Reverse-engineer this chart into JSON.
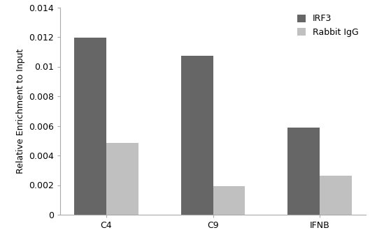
{
  "categories": [
    "C4",
    "C9",
    "IFNB"
  ],
  "irf3_values": [
    0.01195,
    0.01075,
    0.0059
  ],
  "rabbit_igg_values": [
    0.00485,
    0.00195,
    0.00265
  ],
  "irf3_color": "#666666",
  "rabbit_igg_color": "#c0c0c0",
  "irf3_label": "IRF3",
  "rabbit_igg_label": "Rabbit IgG",
  "ylabel": "Relative Enrichment to Input",
  "ylim": [
    0,
    0.014
  ],
  "yticks": [
    0,
    0.002,
    0.004,
    0.006,
    0.008,
    0.01,
    0.012,
    0.014
  ],
  "ytick_labels": [
    "0",
    "0.002",
    "0.004",
    "0.006",
    "0.008",
    "0.01",
    "0.012",
    "0.014"
  ],
  "bar_width": 0.3,
  "legend_fontsize": 9,
  "tick_fontsize": 9,
  "ylabel_fontsize": 9,
  "background_color": "#ffffff"
}
